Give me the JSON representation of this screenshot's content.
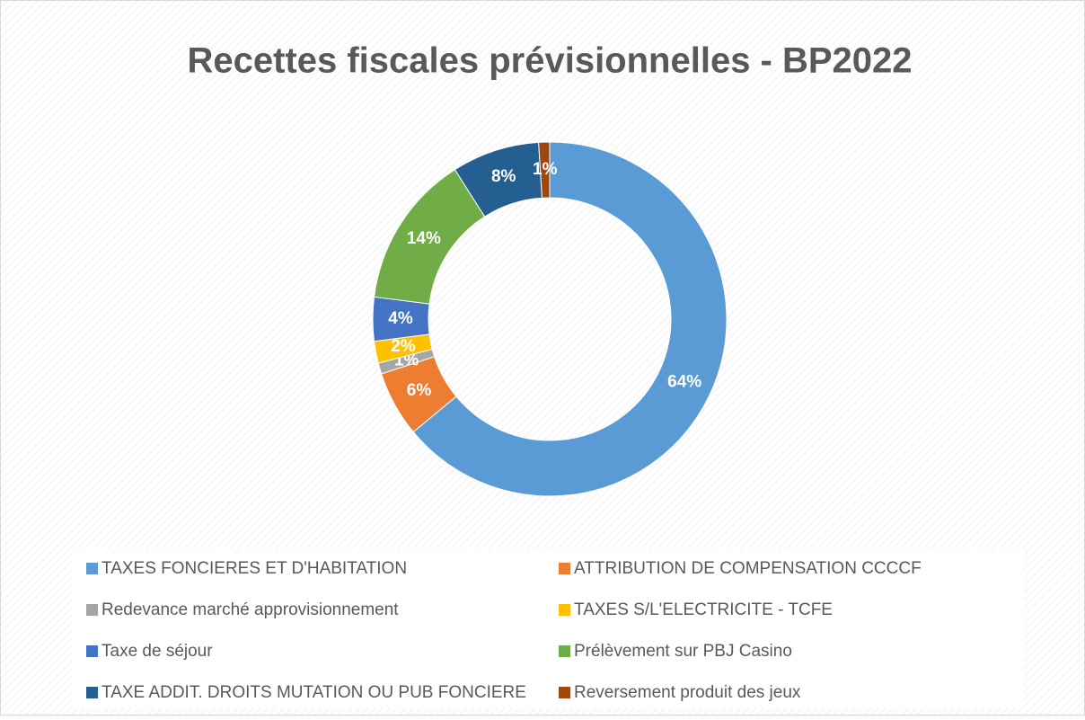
{
  "chart_data": {
    "type": "donut",
    "title": "Recettes fiscales prévisionnelles - BP2022",
    "categories": [
      "TAXES FONCIERES ET D'HABITATION",
      "ATTRIBUTION DE COMPENSATION CCCCF",
      "Redevance marché approvisionnement",
      "TAXES S/L'ELECTRICITE - TCFE",
      "Taxe de séjour",
      "Prélèvement sur PBJ Casino",
      "TAXE ADDIT. DROITS MUTATION OU PUB FONCIERE",
      "Reversement produit des jeux"
    ],
    "values": [
      64,
      6,
      1,
      2,
      4,
      14,
      8,
      1
    ],
    "value_labels": [
      "64%",
      "6%",
      "1%",
      "2%",
      "4%",
      "14%",
      "8%",
      "1%"
    ],
    "colors": [
      "#5B9BD5",
      "#ED7D31",
      "#A5A5A5",
      "#FFC000",
      "#4472C4",
      "#70AD47",
      "#255E91",
      "#9E480E"
    ],
    "legend": "bottom"
  }
}
